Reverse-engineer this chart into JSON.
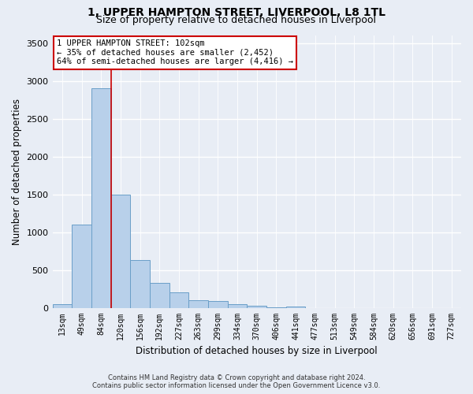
{
  "title1": "1, UPPER HAMPTON STREET, LIVERPOOL, L8 1TL",
  "title2": "Size of property relative to detached houses in Liverpool",
  "xlabel": "Distribution of detached houses by size in Liverpool",
  "ylabel": "Number of detached properties",
  "footnote1": "Contains HM Land Registry data © Crown copyright and database right 2024.",
  "footnote2": "Contains public sector information licensed under the Open Government Licence v3.0.",
  "bar_labels": [
    "13sqm",
    "49sqm",
    "84sqm",
    "120sqm",
    "156sqm",
    "192sqm",
    "227sqm",
    "263sqm",
    "299sqm",
    "334sqm",
    "370sqm",
    "406sqm",
    "441sqm",
    "477sqm",
    "513sqm",
    "549sqm",
    "584sqm",
    "620sqm",
    "656sqm",
    "691sqm",
    "727sqm"
  ],
  "bar_values": [
    50,
    1100,
    2900,
    1500,
    635,
    330,
    210,
    105,
    95,
    55,
    30,
    15,
    20,
    5,
    3,
    3,
    2,
    0,
    0,
    0,
    0
  ],
  "bar_color": "#b8d0ea",
  "bar_edge_color": "#6a9fc8",
  "vline_x": 2.5,
  "vline_color": "#cc0000",
  "annotation_line1": "1 UPPER HAMPTON STREET: 102sqm",
  "annotation_line2": "← 35% of detached houses are smaller (2,452)",
  "annotation_line3": "64% of semi-detached houses are larger (4,416) →",
  "ylim_max": 3600,
  "yticks": [
    0,
    500,
    1000,
    1500,
    2000,
    2500,
    3000,
    3500
  ],
  "bg_color": "#e8edf5",
  "grid_color": "#ffffff",
  "title1_fontsize": 10,
  "title2_fontsize": 9,
  "xlabel_fontsize": 8.5,
  "ylabel_fontsize": 8.5,
  "annot_fontsize": 7.5,
  "footnote_fontsize": 6.0
}
